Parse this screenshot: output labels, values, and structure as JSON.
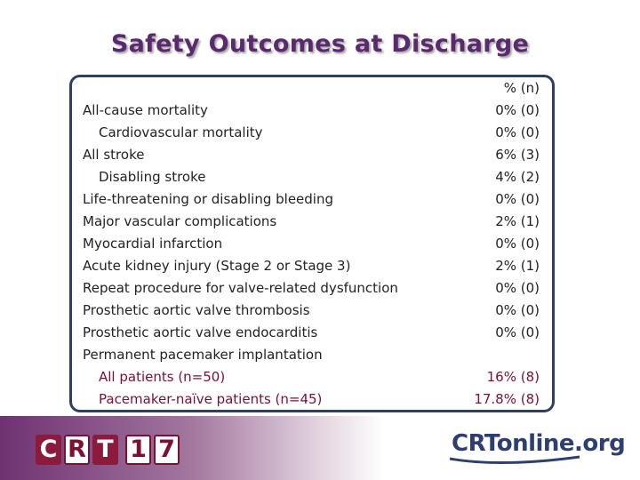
{
  "slide": {
    "title": "Safety Outcomes at Discharge"
  },
  "table": {
    "header_value": "% (n)",
    "rows": [
      {
        "label": "All-cause mortality",
        "value": "0% (0)",
        "indent": false
      },
      {
        "label": "Cardiovascular mortality",
        "value": "0% (0)",
        "indent": true
      },
      {
        "label": "All stroke",
        "value": "6% (3)",
        "indent": false
      },
      {
        "label": "Disabling stroke",
        "value": "4% (2)",
        "indent": true
      },
      {
        "label": "Life-threatening or disabling bleeding",
        "value": "0% (0)",
        "indent": false
      },
      {
        "label": "Major vascular complications",
        "value": "2% (1)",
        "indent": false
      },
      {
        "label": "Myocardial infarction",
        "value": "0% (0)",
        "indent": false
      },
      {
        "label": "Acute kidney injury (Stage 2 or Stage 3)",
        "value": "2% (1)",
        "indent": false
      },
      {
        "label": "Repeat procedure for valve-related dysfunction",
        "value": "0% (0)",
        "indent": false
      },
      {
        "label": "Prosthetic aortic valve thrombosis",
        "value": "0% (0)",
        "indent": false
      },
      {
        "label": "Prosthetic aortic valve endocarditis",
        "value": "0% (0)",
        "indent": false
      },
      {
        "label": "Permanent pacemaker implantation",
        "value": "",
        "indent": false
      },
      {
        "label": "All patients (n=50)",
        "value": "16% (8)",
        "indent": true,
        "highlight": true
      },
      {
        "label": "Pacemaker-naïve patients (n=45)",
        "value": "17.8% (8)",
        "indent": true,
        "highlight": true
      }
    ]
  },
  "footer": {
    "logo_left": [
      "C",
      "R",
      "T",
      "1",
      "7"
    ],
    "logo_right": "CRTonline.org"
  },
  "colors": {
    "title": "#5b2a6e",
    "panel_border": "#2e3f63",
    "highlight_text": "#7b1030",
    "logo_box": "#8b1a3c",
    "logo_online": "#2f3e70"
  }
}
